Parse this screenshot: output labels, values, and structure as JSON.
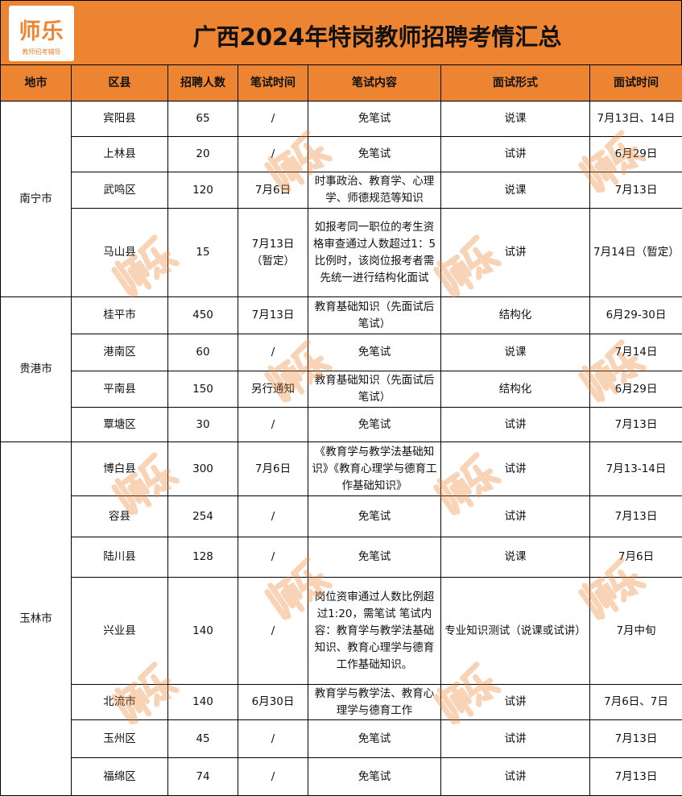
{
  "logo": {
    "name": "师乐",
    "tagline": "教师招考辅导"
  },
  "title": "广西2024年特岗教师招聘考情汇总",
  "columns": [
    "地市",
    "区县",
    "招聘人数",
    "笔试时间",
    "笔试内容",
    "面试形式",
    "面试时间"
  ],
  "groups": [
    {
      "city": "南宁市",
      "rows": [
        [
          "宾阳县",
          "65",
          "/",
          "免笔试",
          "说课",
          "7月13日、14日"
        ],
        [
          "上林县",
          "20",
          "/",
          "免笔试",
          "试讲",
          "6月29日"
        ],
        [
          "武鸣区",
          "120",
          "7月6日",
          "时事政治、教育学、心理学、师德规范等知识",
          "说课",
          "7月13日"
        ],
        [
          "马山县",
          "15",
          "7月13日（暂定）",
          "如报考同一职位的考生资格审查通过人数超过1：5比例时，该岗位报考者需先统一进行结构化面试",
          "试讲",
          "7月14日（暂定）"
        ]
      ]
    },
    {
      "city": "贵港市",
      "rows": [
        [
          "桂平市",
          "450",
          "7月13日",
          "教育基础知识（先面试后笔试）",
          "结构化",
          "6月29-30日"
        ],
        [
          "港南区",
          "60",
          "/",
          "免笔试",
          "说课",
          "7月14日"
        ],
        [
          "平南县",
          "150",
          "另行通知",
          "教育基础知识（先面试后笔试）",
          "结构化",
          "6月29日"
        ],
        [
          "覃塘区",
          "30",
          "/",
          "免笔试",
          "试讲",
          "7月13日"
        ]
      ]
    },
    {
      "city": "玉林市",
      "rows": [
        [
          "博白县",
          "300",
          "7月6日",
          "《教育学与教学法基础知识》《教育心理学与德育工作基础知识》",
          "试讲",
          "7月13-14日"
        ],
        [
          "容县",
          "254",
          "/",
          "免笔试",
          "试讲",
          "7月13日"
        ],
        [
          "陆川县",
          "128",
          "/",
          "免笔试",
          "说课",
          "7月6日"
        ],
        [
          "兴业县",
          "140",
          "/",
          "岗位资审通过人数比例超过1:20，需笔试 笔试内容：教育学与教学法基础知识、教育心理学与德育工作基础知识。",
          "专业知识测试（说课或试讲）",
          "7月中旬"
        ],
        [
          "北流市",
          "140",
          "6月30日",
          "教育学与教学法、教育心理学与德育工作",
          "试讲",
          "7月6日、7日"
        ],
        [
          "玉州区",
          "45",
          "/",
          "免笔试",
          "试讲",
          "7月13日"
        ],
        [
          "福绵区",
          "74",
          "/",
          "免笔试",
          "试讲",
          "7月13日"
        ]
      ]
    }
  ],
  "watermark": "师乐",
  "colors": {
    "header": "#ED8431"
  }
}
